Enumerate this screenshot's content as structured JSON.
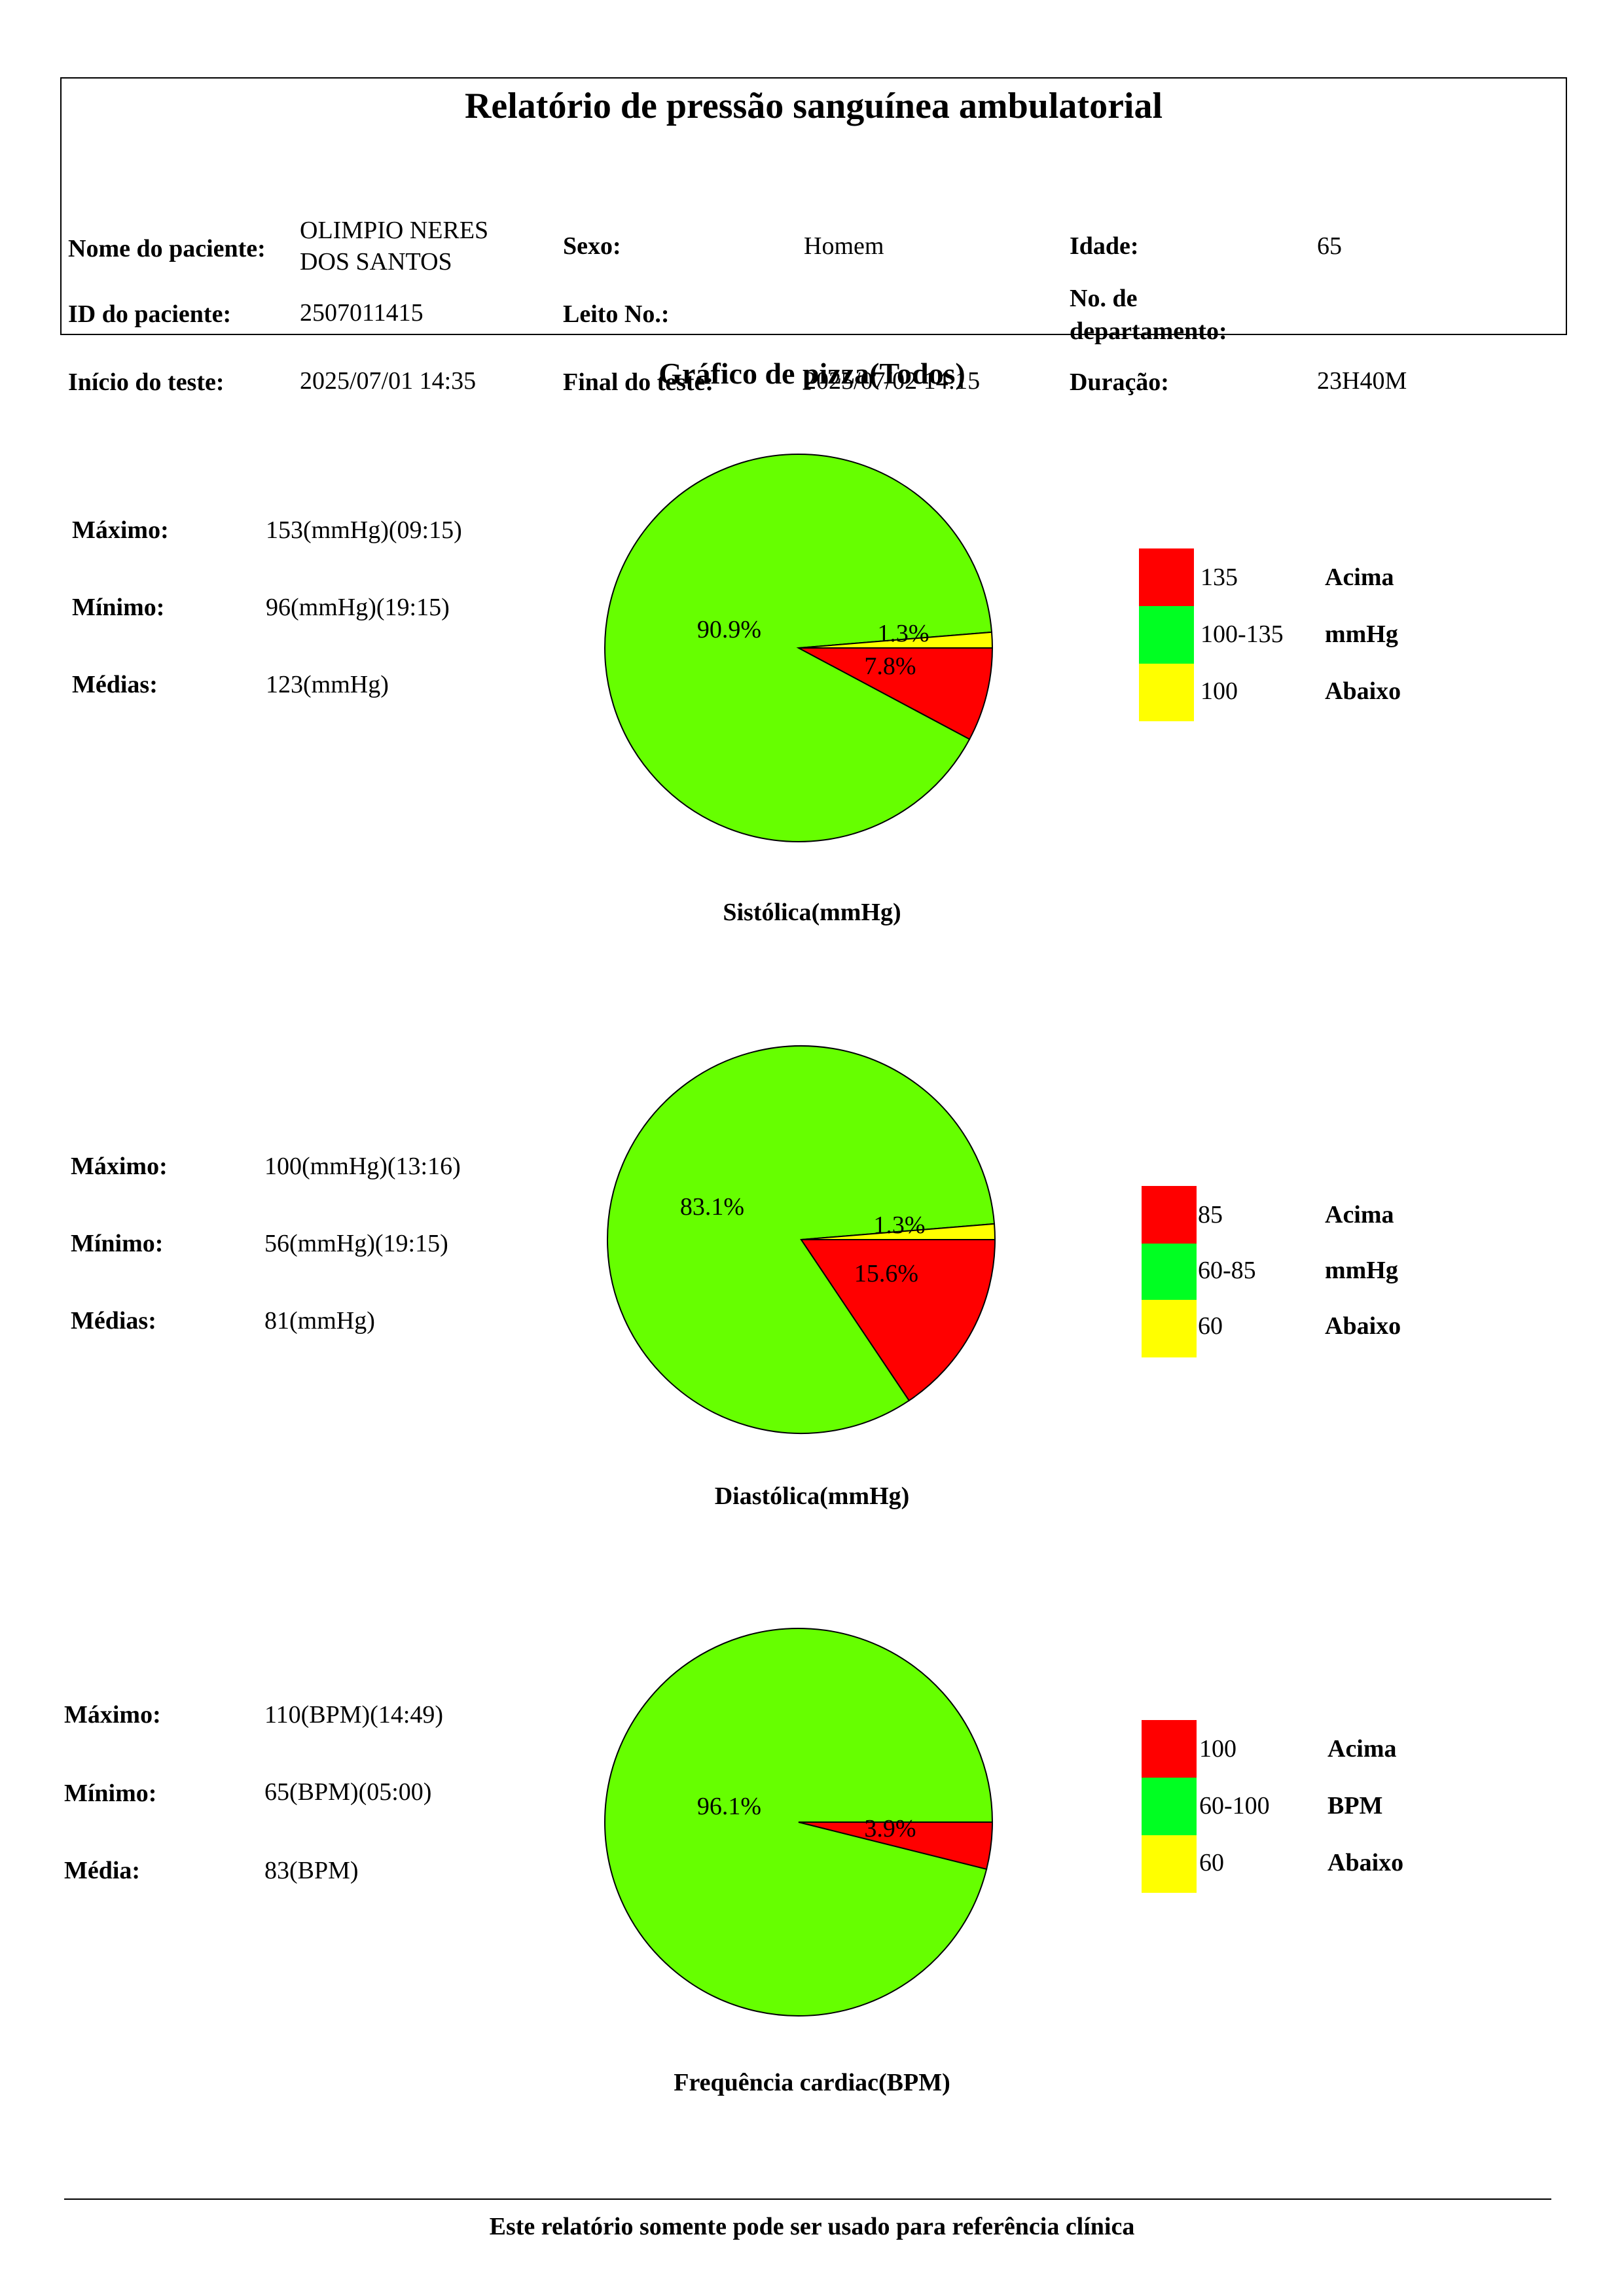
{
  "report": {
    "title": "Relatório de pressão sanguínea ambulatorial",
    "patient_name_label": "Nome do paciente:",
    "patient_name_line1": "OLIMPIO NERES",
    "patient_name_line2": "DOS SANTOS",
    "sex_label": "Sexo:",
    "sex": "Homem",
    "age_label": "Idade:",
    "age": "65",
    "patient_id_label": "ID do paciente:",
    "patient_id": "2507011415",
    "bed_label": "Leito No.:",
    "bed": "",
    "dept_label_line1": "No. de",
    "dept_label_line2": "departamento:",
    "dept": "",
    "start_label": "Início do teste:",
    "start": "2025/07/01 14:35",
    "end_label": "Final do teste:",
    "end": "2025/07/02 14:15",
    "duration_label": "Duração:",
    "duration": "23H40M"
  },
  "pie_section_title": "Gráfico de pizza(Todos)",
  "colors": {
    "above": "#ff0000",
    "normal": "#66ff00",
    "legend_normal": "#00ff22",
    "below": "#ffff00",
    "outline": "#000000"
  },
  "sections": [
    {
      "stats": [
        {
          "label": "Máximo:",
          "value": "153(mmHg)(09:15)"
        },
        {
          "label": "Mínimo:",
          "value": "96(mmHg)(19:15)"
        },
        {
          "label": "Médias:",
          "value": "123(mmHg)"
        }
      ],
      "caption": "Sistólica(mmHg)",
      "legend": [
        {
          "range": "135",
          "desc": "Acima"
        },
        {
          "range": "100-135",
          "desc": "mmHg"
        },
        {
          "range": "100",
          "desc": "Abaixo"
        }
      ]
    },
    {
      "stats": [
        {
          "label": "Máximo:",
          "value": "100(mmHg)(13:16)"
        },
        {
          "label": "Mínimo:",
          "value": "56(mmHg)(19:15)"
        },
        {
          "label": "Médias:",
          "value": "81(mmHg)"
        }
      ],
      "caption": "Diastólica(mmHg)",
      "legend": [
        {
          "range": "85",
          "desc": "Acima"
        },
        {
          "range": "60-85",
          "desc": "mmHg"
        },
        {
          "range": "60",
          "desc": "Abaixo"
        }
      ]
    },
    {
      "stats": [
        {
          "label": "Máximo:",
          "value": "110(BPM)(14:49)"
        },
        {
          "label": "Mínimo:",
          "value": "65(BPM)(05:00)"
        },
        {
          "label": "Média:",
          "value": "83(BPM)"
        }
      ],
      "caption": "Frequência cardiac(BPM)",
      "legend": [
        {
          "range": "100",
          "desc": "Acima"
        },
        {
          "range": "60-100",
          "desc": "BPM"
        },
        {
          "range": "60",
          "desc": "Abaixo"
        }
      ]
    }
  ],
  "chart_data": [
    {
      "type": "pie",
      "title": "Sistólica(mmHg)",
      "slices": [
        {
          "category": "Abaixo",
          "value": 1.3,
          "label": "1.3%"
        },
        {
          "category": "Acima",
          "value": 7.8,
          "label": "7.8%"
        },
        {
          "category": "mmHg",
          "value": 90.9,
          "label": "90.9%"
        }
      ]
    },
    {
      "type": "pie",
      "title": "Diastólica(mmHg)",
      "slices": [
        {
          "category": "Abaixo",
          "value": 1.3,
          "label": "1.3%"
        },
        {
          "category": "Acima",
          "value": 15.6,
          "label": "15.6%"
        },
        {
          "category": "mmHg",
          "value": 83.1,
          "label": "83.1%"
        }
      ]
    },
    {
      "type": "pie",
      "title": "Frequência cardiac(BPM)",
      "slices": [
        {
          "category": "Abaixo",
          "value": 0,
          "label": ""
        },
        {
          "category": "Acima",
          "value": 3.9,
          "label": "3.9%"
        },
        {
          "category": "BPM",
          "value": 96.1,
          "label": "96.1%"
        }
      ]
    }
  ],
  "footer": "Este relatório somente pode ser usado para referência clínica"
}
